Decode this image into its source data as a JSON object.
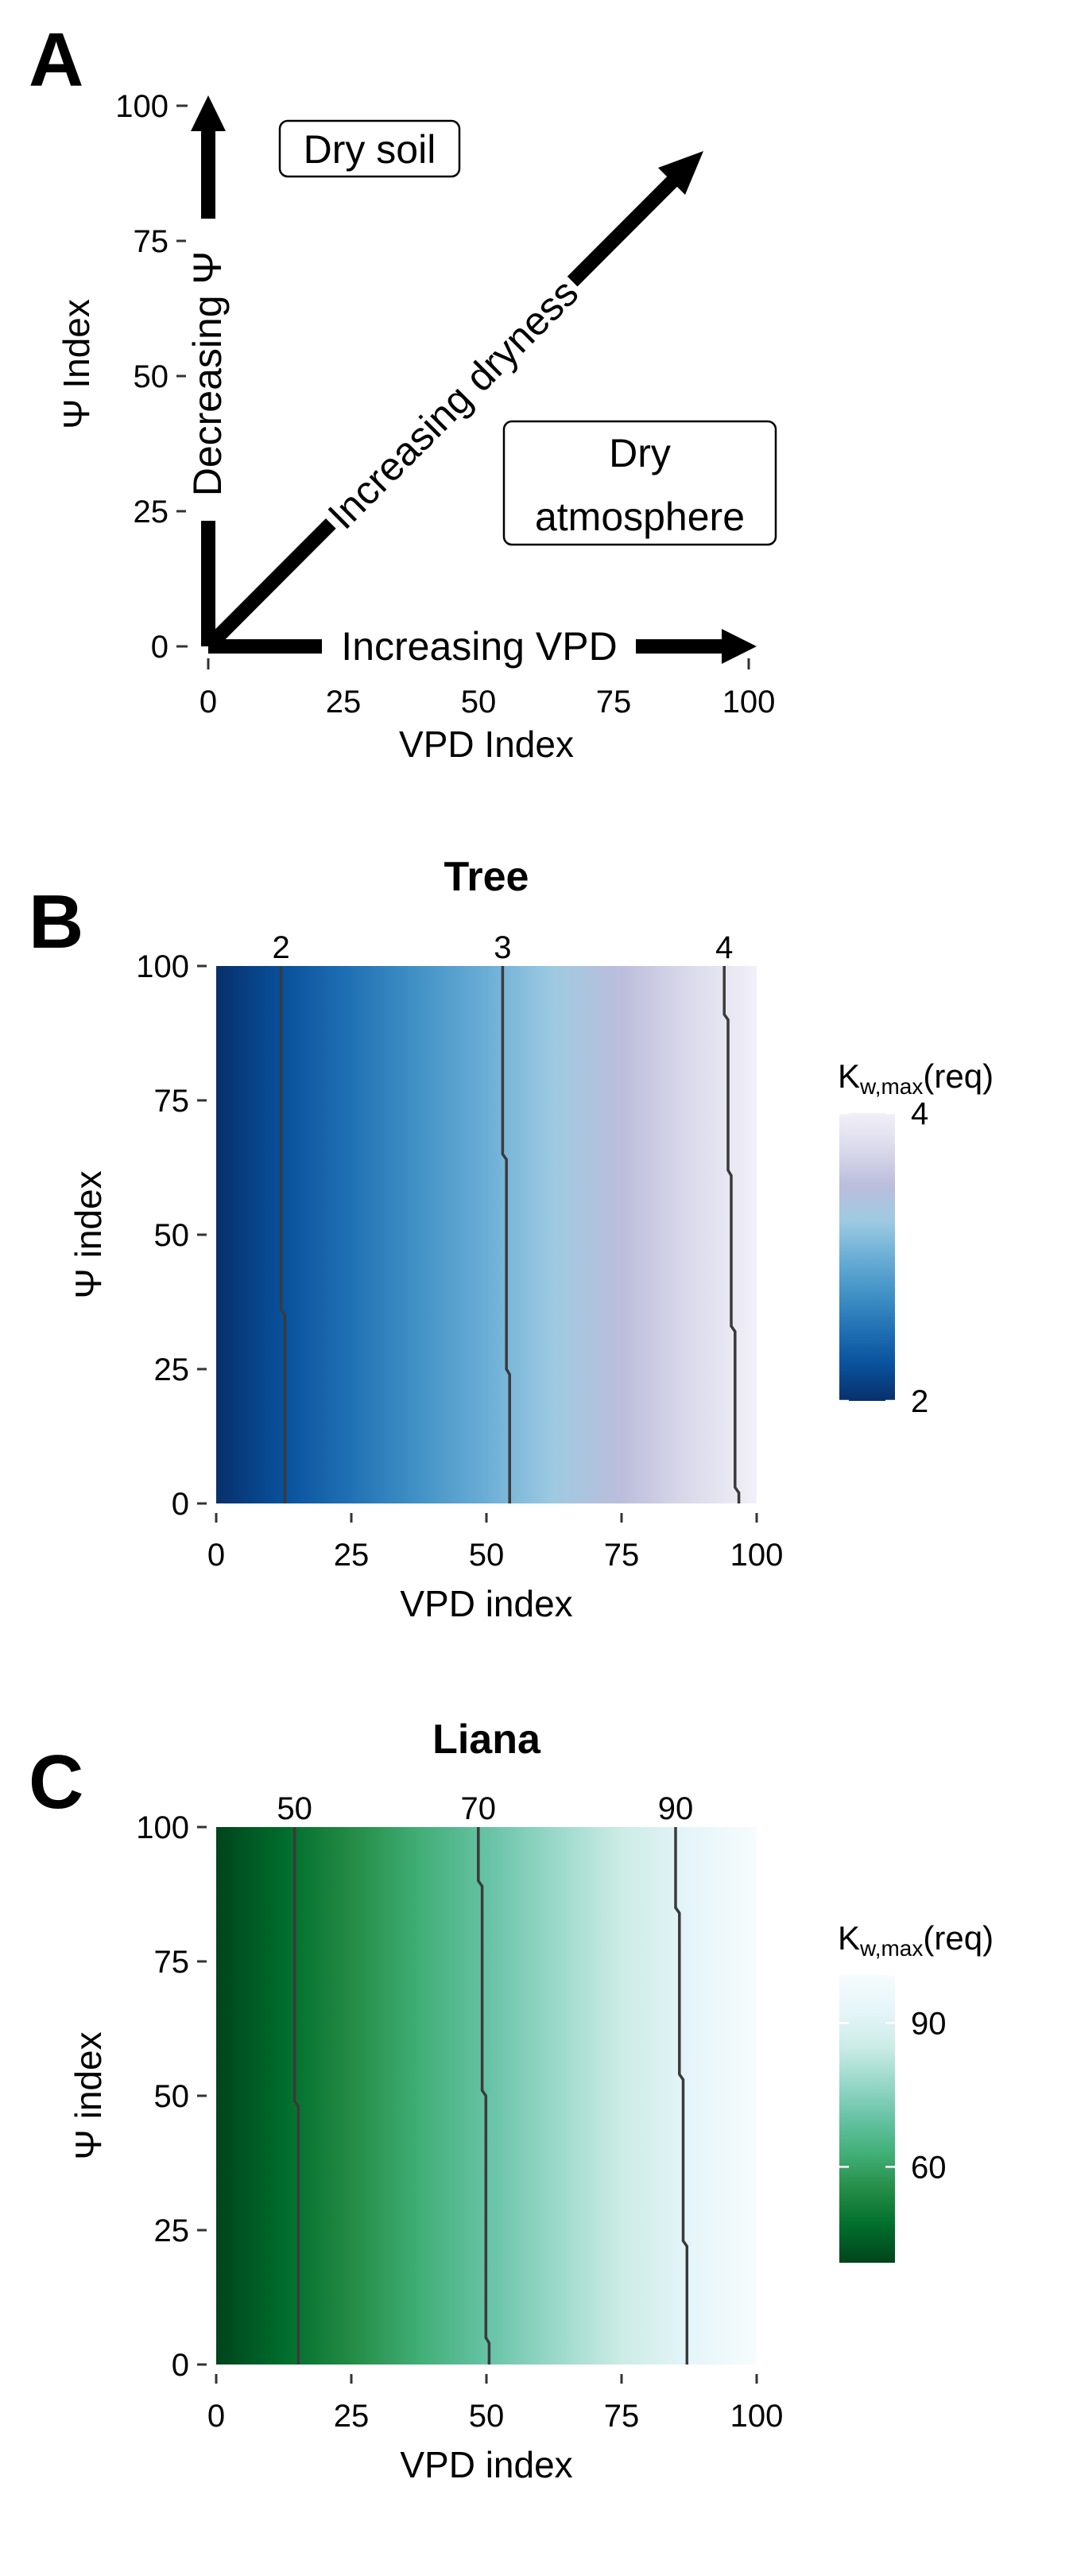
{
  "panels": {
    "a": {
      "letter": "A",
      "xlabel": "VPD Index",
      "ylabel": "Ψ Index",
      "xticks": [
        0,
        25,
        50,
        75,
        100
      ],
      "yticks": [
        0,
        25,
        50,
        75,
        100
      ],
      "xlim": [
        0,
        100
      ],
      "ylim": [
        0,
        100
      ],
      "arrow_up_label": "Decreasing Ψ",
      "arrow_right_label": "Increasing VPD",
      "arrow_diag_label": "Increasing dryness",
      "box_soil": "Dry soil",
      "box_atm_line1": "Dry",
      "box_atm_line2": "atmosphere"
    },
    "b": {
      "letter": "B",
      "title": "Tree",
      "xlabel": "VPD index",
      "ylabel": "Ψ index",
      "legend_title_main": "K",
      "legend_title_sub": "w,max",
      "legend_title_tail": "(req)",
      "colors": [
        "#08306b",
        "#08519c",
        "#2171b5",
        "#4292c6",
        "#6baed6",
        "#9ecae1",
        "#bcbddc",
        "#dadaeb",
        "#f2f0f7"
      ],
      "cbar_range": [
        2,
        4
      ],
      "cbar_ticks": [
        2,
        4
      ]
    },
    "c": {
      "letter": "C",
      "title": "Liana",
      "xlabel": "VPD index",
      "ylabel": "Ψ index",
      "legend_title_main": "K",
      "legend_title_sub": "w,max",
      "legend_title_tail": "(req)",
      "colors": [
        "#00441b",
        "#006d2c",
        "#238b45",
        "#41ae76",
        "#66c2a4",
        "#99d8c9",
        "#ccece6",
        "#e5f5f9",
        "#f7fcfd"
      ],
      "cbar_range": [
        40,
        100
      ],
      "cbar_ticks": [
        60,
        90
      ]
    }
  },
  "chart_data": [
    {
      "type": "heatmap",
      "title": "Tree",
      "xlabel": "VPD index",
      "ylabel": "Ψ index",
      "xlim": [
        0,
        100
      ],
      "ylim": [
        0,
        100
      ],
      "xticks": [
        0,
        25,
        50,
        75,
        100
      ],
      "yticks": [
        0,
        25,
        50,
        75,
        100
      ],
      "value_range": [
        1.8,
        4.07
      ],
      "contours": [
        {
          "label": "2",
          "points": [
            [
              12,
              100
            ],
            [
              12,
              36
            ],
            [
              12.7,
              35
            ],
            [
              12.7,
              0
            ]
          ]
        },
        {
          "label": "3",
          "points": [
            [
              53,
              100
            ],
            [
              53,
              65
            ],
            [
              53.7,
              64
            ],
            [
              53.7,
              25
            ],
            [
              54.3,
              24
            ],
            [
              54.3,
              0
            ]
          ]
        },
        {
          "label": "4",
          "points": [
            [
              94,
              100
            ],
            [
              94,
              91
            ],
            [
              94.7,
              90
            ],
            [
              94.7,
              62
            ],
            [
              95.3,
              61
            ],
            [
              95.3,
              33
            ],
            [
              96,
              32
            ],
            [
              96,
              3
            ],
            [
              96.7,
              2
            ],
            [
              96.7,
              0
            ]
          ]
        }
      ],
      "legend": {
        "title": "Kw,max(req)",
        "ticks": [
          2,
          4
        ]
      }
    },
    {
      "type": "heatmap",
      "title": "Liana",
      "xlabel": "VPD index",
      "ylabel": "Ψ index",
      "xlim": [
        0,
        100
      ],
      "ylim": [
        0,
        100
      ],
      "xticks": [
        0,
        25,
        50,
        75,
        100
      ],
      "yticks": [
        0,
        25,
        50,
        75,
        100
      ],
      "value_range": [
        43,
        98
      ],
      "contours": [
        {
          "label": "50",
          "points": [
            [
              14.5,
              100
            ],
            [
              14.5,
              49
            ],
            [
              15.2,
              48
            ],
            [
              15.2,
              0
            ]
          ]
        },
        {
          "label": "70",
          "points": [
            [
              48.5,
              100
            ],
            [
              48.5,
              90
            ],
            [
              49.2,
              89
            ],
            [
              49.2,
              51
            ],
            [
              49.9,
              50
            ],
            [
              49.9,
              5
            ],
            [
              50.5,
              4
            ],
            [
              50.5,
              0
            ]
          ]
        },
        {
          "label": "90",
          "points": [
            [
              85,
              100
            ],
            [
              85,
              85
            ],
            [
              85.7,
              84
            ],
            [
              85.7,
              54
            ],
            [
              86.4,
              53
            ],
            [
              86.4,
              23
            ],
            [
              87.1,
              22
            ],
            [
              87.1,
              0
            ]
          ]
        }
      ],
      "legend": {
        "title": "Kw,max(req)",
        "ticks": [
          60,
          90
        ]
      }
    }
  ]
}
